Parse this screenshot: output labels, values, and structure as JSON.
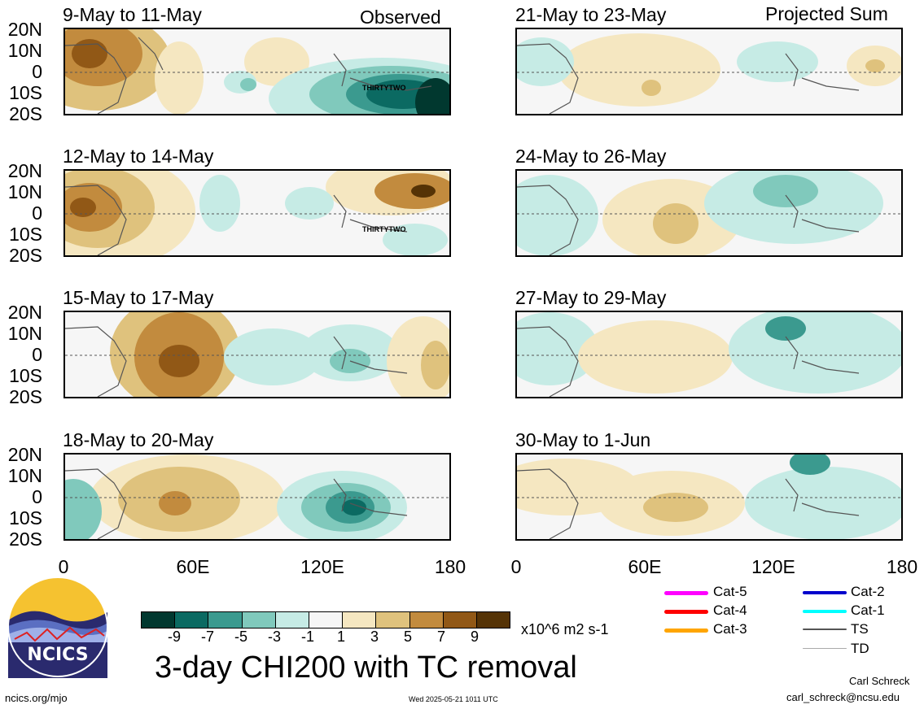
{
  "header": {
    "left_tag": "Observed",
    "right_tag": "Projected Sum"
  },
  "panels_left": [
    {
      "title": "9-May to 11-May",
      "tc_label": "THIRTYTWO"
    },
    {
      "title": "12-May to 14-May",
      "tc_label": "THIRTYTWO"
    },
    {
      "title": "15-May to 17-May"
    },
    {
      "title": "18-May to 20-May"
    }
  ],
  "panels_right": [
    {
      "title": "21-May to 23-May"
    },
    {
      "title": "24-May to 26-May"
    },
    {
      "title": "27-May to 29-May"
    },
    {
      "title": "30-May to 1-Jun"
    }
  ],
  "lat_labels": [
    "20N",
    "10N",
    "0",
    "10S",
    "20S"
  ],
  "lon_labels": [
    "0",
    "60E",
    "120E",
    "180"
  ],
  "colorbar": {
    "colors": [
      "#01382f",
      "#0b6a62",
      "#3b9a8f",
      "#80c9bc",
      "#c6ebe5",
      "#f6f6f6",
      "#f5e7c1",
      "#dfc27d",
      "#c28b3e",
      "#915816",
      "#553306"
    ],
    "labels": [
      "-9",
      "-7",
      "-5",
      "-3",
      "-1",
      "1",
      "3",
      "5",
      "7",
      "9"
    ],
    "units": "x10^6 m2 s-1"
  },
  "title": "3-day CHI200 with TC removal",
  "legend": [
    {
      "label": "Cat-5",
      "color": "#ff00ff"
    },
    {
      "label": "Cat-4",
      "color": "#ff0000"
    },
    {
      "label": "Cat-3",
      "color": "#ffa500"
    },
    {
      "label": "Cat-2",
      "color": "#0000cc"
    },
    {
      "label": "Cat-1",
      "color": "#00ffff"
    },
    {
      "label": "TS",
      "color": "#555555"
    },
    {
      "label": "TD",
      "color": "#aaaaaa"
    }
  ],
  "logo": {
    "text": "NCICS"
  },
  "footer": {
    "url": "ncics.org/mjo",
    "timestamp": "Wed 2025-05-21 1011 UTC",
    "author": "Carl Schreck",
    "email": "carl_schreck@ncsu.edu"
  }
}
